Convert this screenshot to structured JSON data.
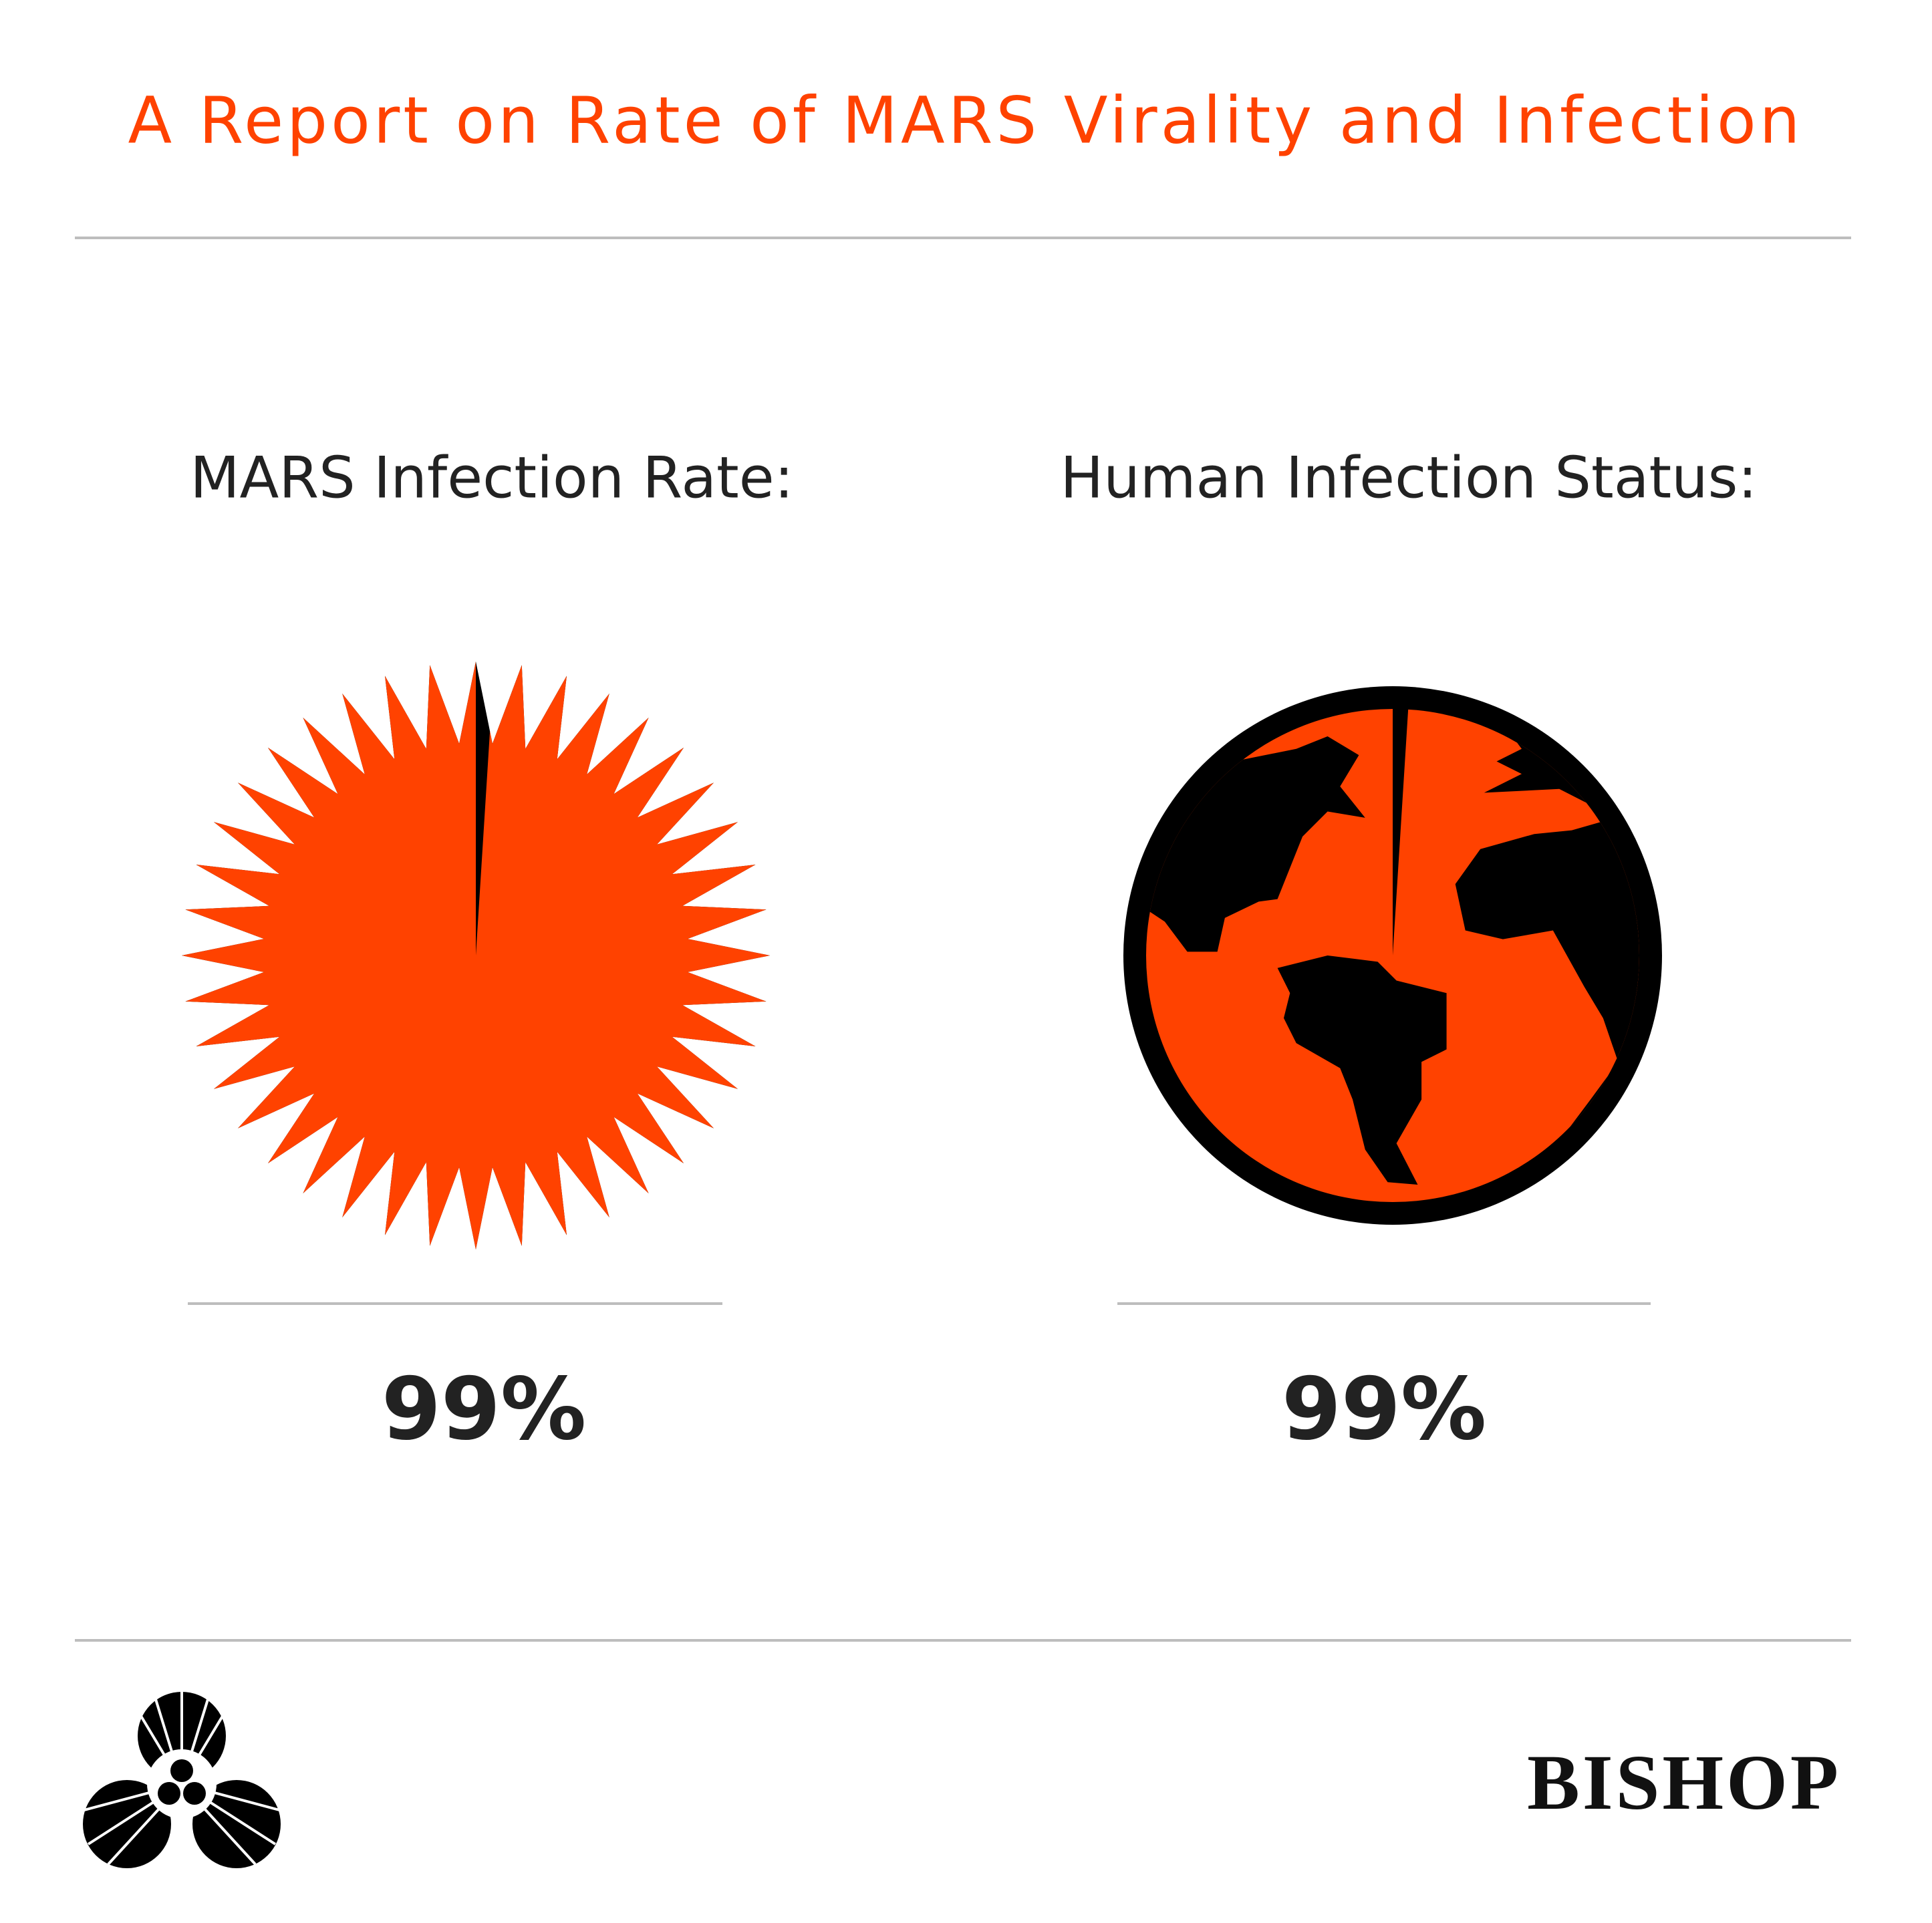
{
  "header": {
    "title": "A Report on Rate of MARS Virality and Infection"
  },
  "chart_data": [
    {
      "type": "starburst",
      "title": "MARS Infection Rate:",
      "values": [
        99
      ],
      "value_labels": [
        "99%"
      ],
      "color": "#ff4200",
      "rest_color": "#000000"
    },
    {
      "type": "globe",
      "title": "Human Infection Status:",
      "values": [
        99
      ],
      "value_labels": [
        "99%"
      ],
      "color": "#ff4200",
      "rest_color": "#000000"
    }
  ],
  "footer": {
    "brand": "BISHOP"
  }
}
